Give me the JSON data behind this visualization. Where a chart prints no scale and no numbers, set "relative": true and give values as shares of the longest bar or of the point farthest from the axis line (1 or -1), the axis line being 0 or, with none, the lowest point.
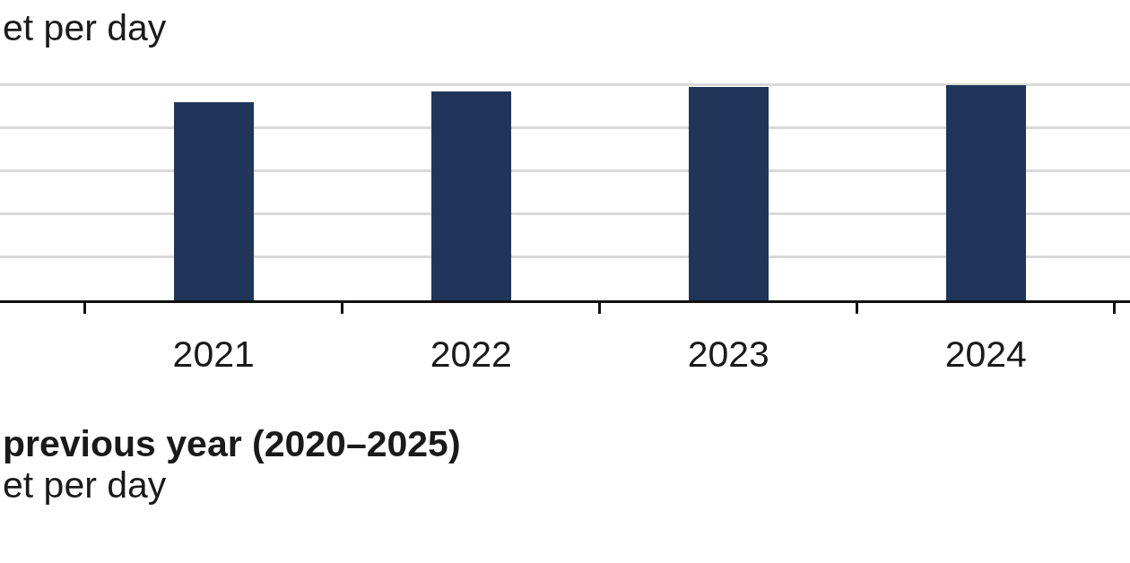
{
  "chart_data": [
    {
      "type": "bar",
      "subtitle": "et per day",
      "categories": [
        "2021",
        "2022",
        "2023",
        "2024"
      ],
      "values": [
        0.92,
        0.97,
        0.99,
        1
      ],
      "color": "#1f365a",
      "relative": true,
      "grid": "y",
      "tick_labels": "x"
    },
    {
      "type": "other",
      "title": "previous year (2020–2025)",
      "subtitle": "et per day"
    }
  ]
}
